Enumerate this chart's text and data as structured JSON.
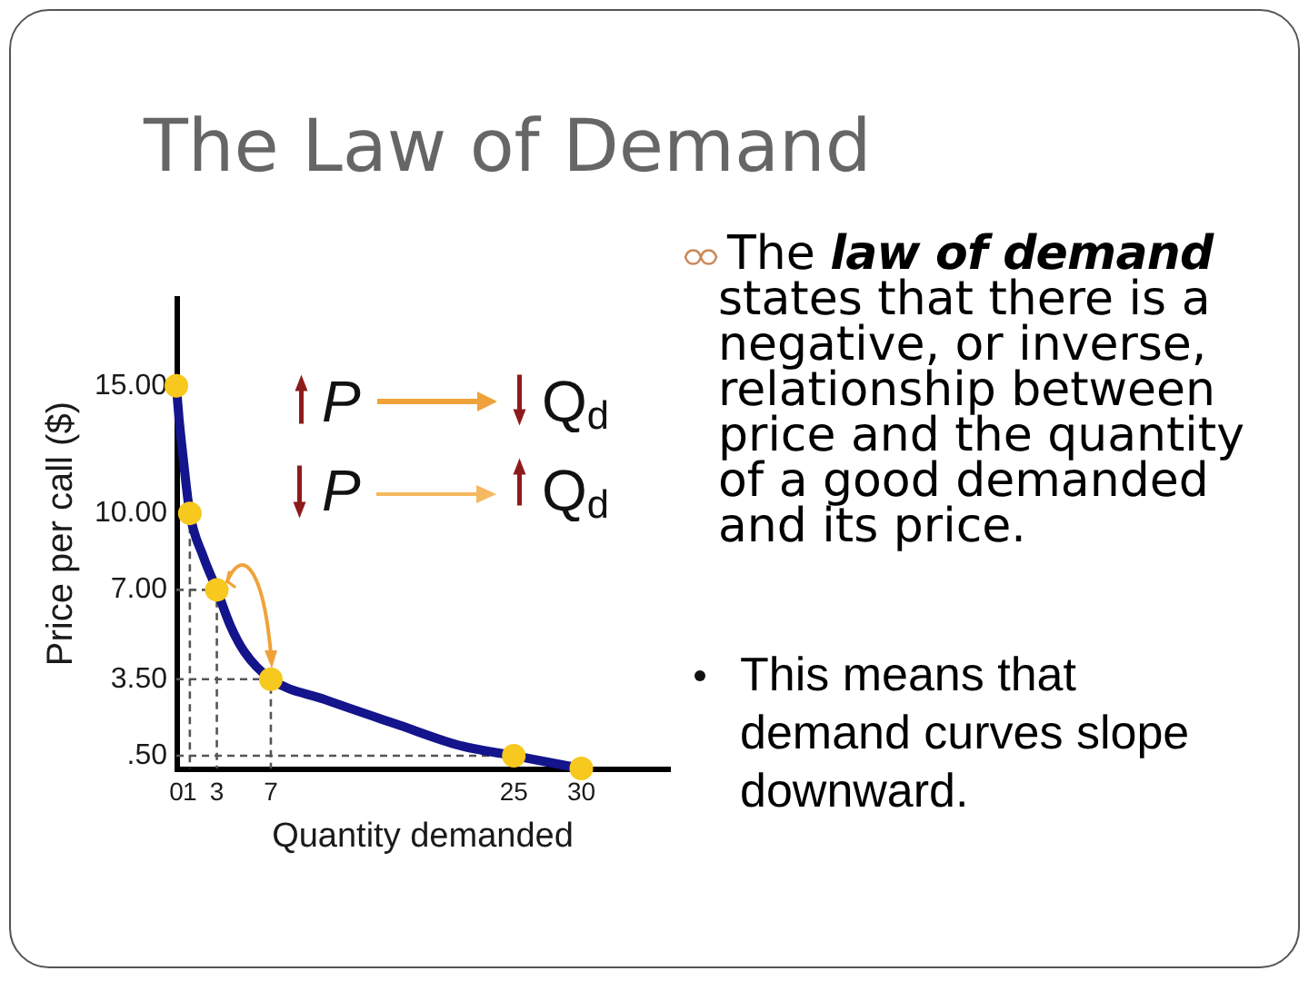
{
  "chart_data": {
    "type": "line",
    "title": "The Law of Demand",
    "xlabel": "Quantity demanded",
    "ylabel": "Price per call ($)",
    "annotations": [
      "The",
      "law of demand",
      "states that there is a negative, or inverse, relationship between price and the quantity of a good demanded and its price.",
      "This means that demand curves slope downward.",
      "P",
      "Q$_{d}$",
      "P",
      "Q$_{d}$"
    ],
    "series": [
      {
        "color": "#555555",
        "line_style": "dashed",
        "x": [
          1,
          1
        ],
        "values": [
          10,
          0
        ]
      },
      {
        "color": "#555555",
        "line_style": "dashed",
        "x": [
          0,
          3,
          3
        ],
        "values": [
          7,
          7,
          0
        ]
      },
      {
        "color": "#555555",
        "line_style": "dashed",
        "x": [
          0,
          7,
          7
        ],
        "values": [
          3.5,
          3.5,
          0
        ]
      },
      {
        "color": "#555555",
        "line_style": "dashed",
        "x": [
          0,
          25
        ],
        "values": [
          0.5,
          0.5
        ]
      },
      {
        "type": "line",
        "color": "#14148c",
        "marker": "none",
        "x": [
          0,
          0.2,
          0.5,
          1,
          2,
          3,
          4,
          5,
          7,
          11,
          16.5,
          21,
          25,
          30
        ],
        "values": [
          15,
          13.7,
          12.2,
          10,
          8.3,
          7,
          5.6,
          4.6,
          3.5,
          2.7,
          1.7,
          0.9,
          0.5,
          0
        ]
      },
      {
        "type": "scatter",
        "color": "#f7c81e",
        "marker": "circle",
        "x": [
          0,
          1,
          3,
          7,
          25,
          30
        ],
        "values": [
          15,
          10,
          7,
          3.5,
          0.5,
          0
        ]
      }
    ],
    "xlim": [
      0,
      36.5
    ],
    "ylim": [
      0,
      18.4
    ],
    "xticks": [
      0,
      1,
      3,
      7,
      25,
      30
    ],
    "yticks": [
      {
        "value": 0.5,
        "label": ".50"
      },
      {
        "value": 3.5,
        "label": "3.50"
      },
      {
        "value": 7,
        "label": "7.00"
      },
      {
        "value": 10,
        "label": "10.00"
      },
      {
        "value": 15,
        "label": "15.00"
      }
    ]
  }
}
